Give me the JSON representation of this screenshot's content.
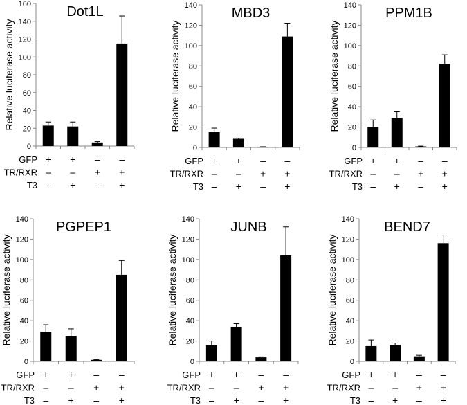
{
  "chart_data": [
    {
      "type": "bar",
      "title": "Dot1L",
      "ylabel": "Relative luciferase activity",
      "ylim": [
        0,
        160
      ],
      "yticks": [
        0,
        20,
        40,
        60,
        80,
        100,
        120,
        140,
        160
      ],
      "values": [
        23,
        22,
        4,
        115
      ],
      "errors": [
        4,
        5,
        1,
        31
      ]
    },
    {
      "type": "bar",
      "title": "MBD3",
      "ylabel": "Relative luciferase activity",
      "ylim": [
        0,
        140
      ],
      "yticks": [
        0,
        20,
        40,
        60,
        80,
        100,
        120,
        140
      ],
      "values": [
        15,
        8.5,
        0.5,
        109
      ],
      "errors": [
        4,
        0.7,
        0.2,
        13
      ]
    },
    {
      "type": "bar",
      "title": "PPM1B",
      "ylabel": "Relative luciferase activity",
      "ylim": [
        0,
        140
      ],
      "yticks": [
        0,
        20,
        40,
        60,
        80,
        100,
        120,
        140
      ],
      "values": [
        20,
        29,
        1,
        82
      ],
      "errors": [
        7,
        6,
        0.3,
        9
      ]
    },
    {
      "type": "bar",
      "title": "PGPEP1",
      "ylabel": "Relative luciferase activity",
      "ylim": [
        0,
        140
      ],
      "yticks": [
        0,
        20,
        40,
        60,
        80,
        100,
        120,
        140
      ],
      "values": [
        29,
        25,
        1.5,
        85
      ],
      "errors": [
        7,
        7,
        0.3,
        14
      ]
    },
    {
      "type": "bar",
      "title": "JUNB",
      "ylabel": "Relative luciferase activity",
      "ylim": [
        0,
        140
      ],
      "yticks": [
        0,
        20,
        40,
        60,
        80,
        100,
        120,
        140
      ],
      "values": [
        16,
        34,
        4,
        104
      ],
      "errors": [
        4,
        3,
        0.5,
        28
      ]
    },
    {
      "type": "bar",
      "title": "BEND7",
      "ylabel": "Relative luciferase activity",
      "ylim": [
        0,
        140
      ],
      "yticks": [
        0,
        20,
        40,
        60,
        80,
        100,
        120,
        140
      ],
      "values": [
        15,
        16,
        5,
        116
      ],
      "errors": [
        6,
        2,
        1,
        8
      ]
    }
  ],
  "conditions": {
    "rows": [
      {
        "label": "GFP",
        "marks": [
          "+",
          "+",
          "–",
          "–"
        ]
      },
      {
        "label": "TR/RXR",
        "marks": [
          "–",
          "–",
          "+",
          "+"
        ]
      },
      {
        "label": "T3",
        "marks": [
          "–",
          "+",
          "–",
          "+"
        ]
      }
    ]
  }
}
